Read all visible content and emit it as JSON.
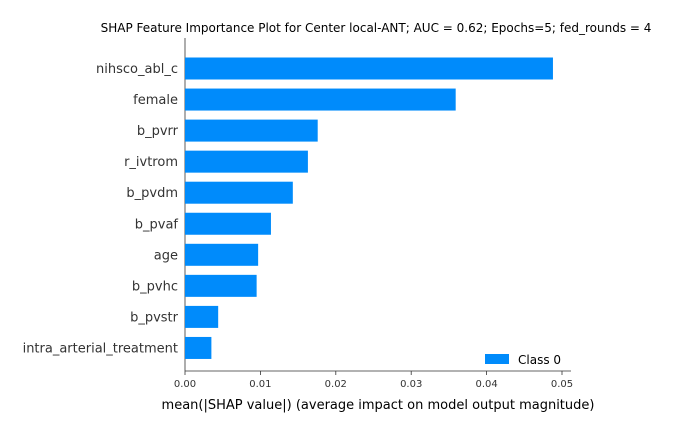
{
  "chart_data": {
    "type": "bar",
    "orientation": "horizontal",
    "title": "SHAP Feature Importance Plot for Center local-ANT; AUC = 0.62; Epochs=5; fed_rounds = 4",
    "xlabel": "mean(|SHAP value|) (average impact on model output magnitude)",
    "ylabel": "",
    "xlim": [
      0,
      0.05
    ],
    "xticks": [
      0.0,
      0.01,
      0.02,
      0.03,
      0.04,
      0.05
    ],
    "xtick_labels": [
      "0.00",
      "0.01",
      "0.02",
      "0.03",
      "0.04",
      "0.05"
    ],
    "categories": [
      "nihsco_abl_c",
      "female",
      "b_pvrr",
      "r_ivtrom",
      "b_pvdm",
      "b_pvaf",
      "age",
      "b_pvhc",
      "b_pvstr",
      "intra_arterial_treatment"
    ],
    "values": [
      0.0488,
      0.0359,
      0.0176,
      0.0163,
      0.0143,
      0.0114,
      0.0097,
      0.0095,
      0.0044,
      0.0035
    ],
    "series": [
      {
        "name": "Class 0",
        "color": "#008bfb"
      }
    ],
    "legend_position": "lower-right",
    "grid": false
  }
}
